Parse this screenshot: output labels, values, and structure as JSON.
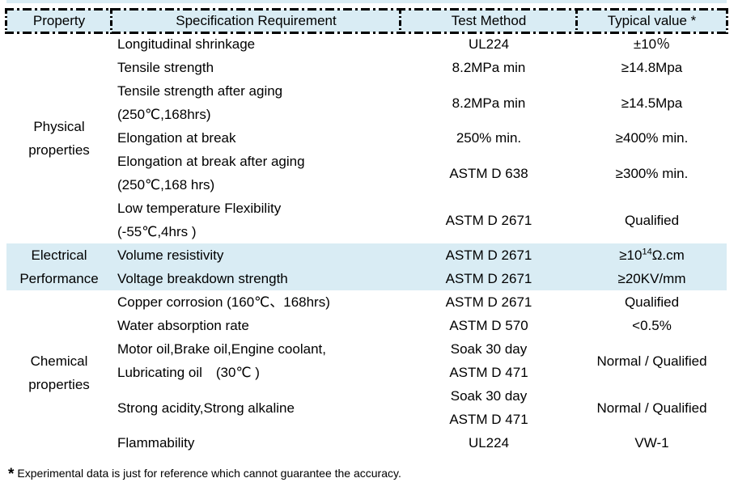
{
  "colors": {
    "accent_bg": "#d9ecf4",
    "border": "#000000",
    "text": "#000000"
  },
  "table": {
    "headers": [
      "Property",
      "Specification Requirement",
      "Test Method",
      "Typical value *"
    ],
    "groups": [
      {
        "label": [
          "Physical",
          "properties"
        ],
        "highlighted": false,
        "rows": [
          {
            "spec": [
              "Longitudinal shrinkage"
            ],
            "test": [
              "UL224"
            ],
            "typical": "±10％"
          },
          {
            "spec": [
              "Tensile strength"
            ],
            "test": [
              "8.2MPa min"
            ],
            "typical": "≥14.8Mpa"
          },
          {
            "spec": [
              "Tensile strength after aging",
              " (250℃,168hrs)"
            ],
            "test": [
              "8.2MPa min"
            ],
            "typical": "≥14.5Mpa"
          },
          {
            "spec": [
              "Elongation at break"
            ],
            "test": [
              "250% min."
            ],
            "typical": "≥400% min."
          },
          {
            "spec": [
              "Elongation at break after aging",
              "(250℃,168 hrs)"
            ],
            "test": [
              "ASTM D 638"
            ],
            "typical": "≥300% min."
          },
          {
            "spec": [
              "Low temperature Flexibility",
              "(-55℃,4hrs )"
            ],
            "test": [
              "ASTM D 2671"
            ],
            "typical": "Qualified"
          }
        ]
      },
      {
        "label": [
          "Electrical",
          "Performance"
        ],
        "highlighted": true,
        "rows": [
          {
            "spec": [
              "Volume resistivity"
            ],
            "test": [
              "ASTM D 2671"
            ],
            "typical": {
              "pre": "≥10",
              "sup": "14",
              "post": "Ω.cm"
            }
          },
          {
            "spec": [
              "Voltage breakdown strength"
            ],
            "test": [
              "ASTM D 2671"
            ],
            "typical": "≥20KV/mm"
          }
        ]
      },
      {
        "label": [
          "Chemical",
          "properties"
        ],
        "highlighted": false,
        "rows": [
          {
            "spec": [
              "Copper corrosion (160℃、168hrs)"
            ],
            "test": [
              "ASTM D 2671"
            ],
            "typical": "Qualified"
          },
          {
            "spec": [
              "Water absorption rate"
            ],
            "test": [
              "ASTM D 570"
            ],
            "typical": "<0.5%"
          },
          {
            "spec": [
              "Motor oil,Brake oil,Engine coolant,",
              "Lubricating oil　(30℃ )"
            ],
            "test": [
              "Soak 30 day",
              "ASTM D 471"
            ],
            "typical": "Normal / Qualified"
          },
          {
            "spec": [
              "Strong acidity,Strong alkaline"
            ],
            "test": [
              "Soak 30 day",
              "ASTM D 471"
            ],
            "typical": "Normal / Qualified"
          },
          {
            "spec": [
              "Flammability"
            ],
            "test": [
              "UL224"
            ],
            "typical": "VW-1"
          }
        ]
      }
    ]
  },
  "footnote": {
    "marker": "*",
    "text": "Experimental data is just for reference which cannot guarantee the accuracy."
  }
}
